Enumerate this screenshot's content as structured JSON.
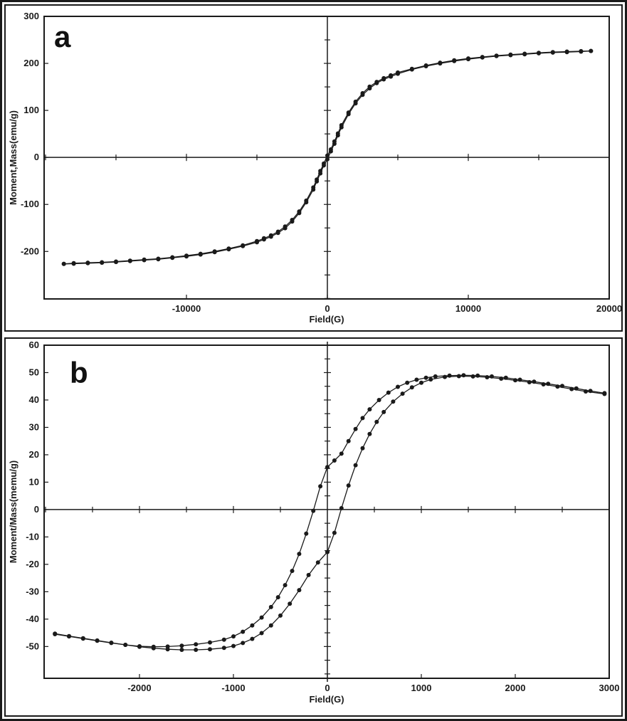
{
  "figure": {
    "background": "#ffffff",
    "ink_color": "#1a1a1a",
    "panels": [
      "a",
      "b"
    ]
  },
  "chart_data": [
    {
      "id": "a",
      "type": "line",
      "corner_label": "a",
      "title": "",
      "xlabel": "Field(G)",
      "ylabel": "Moment,Mass(emu/g)",
      "xlim": [
        -20100,
        20000
      ],
      "ylim": [
        -301,
        300
      ],
      "x_major_ticks": [
        -10000,
        0,
        10000,
        20000
      ],
      "x_tick_labels": [
        "-10000",
        "0",
        "10000",
        "20000"
      ],
      "x_minor_step": 5000,
      "y_major_ticks": [
        300,
        200,
        100,
        0,
        -100,
        -200
      ],
      "y_tick_labels": [
        "300",
        "200",
        "100",
        "0",
        "-100",
        "-200"
      ],
      "y_minor_step": 50,
      "grid": false,
      "legend": "none",
      "marker": "filled-circle",
      "series": [
        {
          "name": "ascending-branch",
          "points": [
            [
              -18700,
              -226.5
            ],
            [
              -18000,
              -226
            ],
            [
              -17000,
              -225
            ],
            [
              -16000,
              -224
            ],
            [
              -15000,
              -222.5
            ],
            [
              -14000,
              -220.5
            ],
            [
              -13000,
              -218.5
            ],
            [
              -12000,
              -216.5
            ],
            [
              -11000,
              -213.5
            ],
            [
              -10000,
              -210.5
            ],
            [
              -9000,
              -206.5
            ],
            [
              -8000,
              -201.5
            ],
            [
              -7000,
              -195.5
            ],
            [
              -6000,
              -188.5
            ],
            [
              -5000,
              -180.5
            ],
            [
              -4500,
              -174.5
            ],
            [
              -4000,
              -168.5
            ],
            [
              -3500,
              -160.5
            ],
            [
              -3000,
              -150.5
            ],
            [
              -2500,
              -136.5
            ],
            [
              -2000,
              -118.5
            ],
            [
              -1500,
              -95.5
            ],
            [
              -1000,
              -68.5
            ],
            [
              -750,
              -51
            ],
            [
              -500,
              -34
            ],
            [
              -250,
              -17
            ],
            [
              0,
              -4
            ],
            [
              250,
              13
            ],
            [
              500,
              29
            ],
            [
              750,
              47
            ],
            [
              1000,
              64
            ],
            [
              1500,
              92
            ],
            [
              2000,
              115
            ],
            [
              2500,
              133
            ],
            [
              3000,
              147
            ],
            [
              3500,
              158
            ],
            [
              4000,
              166
            ],
            [
              4500,
              172
            ],
            [
              5000,
              178
            ],
            [
              6000,
              187
            ],
            [
              7000,
              194
            ],
            [
              8000,
              200
            ],
            [
              9000,
              205
            ],
            [
              10000,
              209
            ],
            [
              11000,
              212.5
            ],
            [
              12000,
              215.5
            ],
            [
              13000,
              217.5
            ],
            [
              14000,
              219.5
            ],
            [
              15000,
              221.5
            ],
            [
              16000,
              223
            ],
            [
              17000,
              224
            ],
            [
              18000,
              225
            ],
            [
              18700,
              226.5
            ]
          ]
        },
        {
          "name": "descending-branch",
          "points": [
            [
              18700,
              226.5
            ],
            [
              18000,
              226
            ],
            [
              17000,
              225
            ],
            [
              16000,
              224
            ],
            [
              15000,
              222.5
            ],
            [
              14000,
              220.5
            ],
            [
              13000,
              218.5
            ],
            [
              12000,
              216.5
            ],
            [
              11000,
              213.5
            ],
            [
              10000,
              210.5
            ],
            [
              9000,
              206.5
            ],
            [
              8000,
              201.5
            ],
            [
              7000,
              195.5
            ],
            [
              6000,
              188.5
            ],
            [
              5000,
              180.5
            ],
            [
              4500,
              174.5
            ],
            [
              4000,
              168.5
            ],
            [
              3500,
              160.5
            ],
            [
              3000,
              150.5
            ],
            [
              2500,
              136.5
            ],
            [
              2000,
              118.5
            ],
            [
              1500,
              95.5
            ],
            [
              1000,
              68.5
            ],
            [
              750,
              51
            ],
            [
              500,
              34
            ],
            [
              250,
              17
            ],
            [
              0,
              4
            ],
            [
              -250,
              -13
            ],
            [
              -500,
              -29
            ],
            [
              -750,
              -47
            ],
            [
              -1000,
              -64
            ],
            [
              -1500,
              -92
            ],
            [
              -2000,
              -115
            ],
            [
              -2500,
              -133
            ],
            [
              -3000,
              -147
            ],
            [
              -3500,
              -158
            ],
            [
              -4000,
              -166
            ],
            [
              -4500,
              -172
            ],
            [
              -5000,
              -178
            ],
            [
              -6000,
              -187
            ],
            [
              -7000,
              -194
            ],
            [
              -8000,
              -200
            ],
            [
              -9000,
              -205
            ],
            [
              -10000,
              -209
            ],
            [
              -11000,
              -212.5
            ],
            [
              -12000,
              -215.5
            ],
            [
              -13000,
              -217.5
            ],
            [
              -14000,
              -219.5
            ],
            [
              -15000,
              -221.5
            ],
            [
              -16000,
              -223
            ],
            [
              -17000,
              -224
            ],
            [
              -18000,
              -225
            ],
            [
              -18700,
              -226.5
            ]
          ]
        }
      ]
    },
    {
      "id": "b",
      "type": "line",
      "corner_label": "b",
      "title": "",
      "xlabel": "Field(G)",
      "ylabel": "Moment/Mass(memu/g)",
      "xlim": [
        -3015,
        3000
      ],
      "ylim": [
        -61.6,
        60
      ],
      "x_major_ticks": [
        -2000,
        -1000,
        0,
        1000,
        2000,
        3000
      ],
      "x_tick_labels": [
        "-2000",
        "-1000",
        "0",
        "1000",
        "2000",
        "3000"
      ],
      "x_minor_step": 500,
      "y_major_ticks": [
        60,
        50,
        40,
        30,
        20,
        10,
        0,
        -10,
        -20,
        -30,
        -40,
        -50
      ],
      "y_tick_labels": [
        "60",
        "50",
        "40",
        "30",
        "20",
        "10",
        "0",
        "-10",
        "-20",
        "-30",
        "-40",
        "-50"
      ],
      "y_minor_step": 5,
      "grid": false,
      "legend": "none",
      "marker": "filled-circle",
      "series": [
        {
          "name": "ascending-branch",
          "points": [
            [
              -2900,
              -45.5
            ],
            [
              -2750,
              -46.3
            ],
            [
              -2600,
              -47.1
            ],
            [
              -2450,
              -47.9
            ],
            [
              -2300,
              -48.7
            ],
            [
              -2150,
              -49.4
            ],
            [
              -2000,
              -50.1
            ],
            [
              -1850,
              -50.6
            ],
            [
              -1700,
              -51
            ],
            [
              -1550,
              -51.2
            ],
            [
              -1400,
              -51.2
            ],
            [
              -1250,
              -51
            ],
            [
              -1100,
              -50.5
            ],
            [
              -1000,
              -49.8
            ],
            [
              -900,
              -48.7
            ],
            [
              -800,
              -47.2
            ],
            [
              -700,
              -45.1
            ],
            [
              -600,
              -42.3
            ],
            [
              -500,
              -38.7
            ],
            [
              -400,
              -34.4
            ],
            [
              -300,
              -29.4
            ],
            [
              -200,
              -23.9
            ],
            [
              -100,
              -19.3
            ],
            [
              0,
              -15.5
            ],
            [
              75,
              -8.5
            ],
            [
              150,
              0.5
            ],
            [
              225,
              8.8
            ],
            [
              300,
              16.2
            ],
            [
              375,
              22.4
            ],
            [
              450,
              27.6
            ],
            [
              525,
              32
            ],
            [
              600,
              35.6
            ],
            [
              700,
              39.4
            ],
            [
              800,
              42.3
            ],
            [
              900,
              44.6
            ],
            [
              1000,
              46.3
            ],
            [
              1100,
              47.5
            ],
            [
              1250,
              48.4
            ],
            [
              1400,
              48.7
            ],
            [
              1550,
              48.6
            ],
            [
              1700,
              48.3
            ],
            [
              1850,
              47.8
            ],
            [
              2000,
              47.2
            ],
            [
              2150,
              46.5
            ],
            [
              2300,
              45.7
            ],
            [
              2450,
              44.9
            ],
            [
              2600,
              44
            ],
            [
              2750,
              43.1
            ],
            [
              2950,
              42.2
            ]
          ]
        },
        {
          "name": "descending-branch",
          "points": [
            [
              2950,
              42.5
            ],
            [
              2800,
              43.3
            ],
            [
              2650,
              44.2
            ],
            [
              2500,
              45.1
            ],
            [
              2350,
              45.9
            ],
            [
              2200,
              46.7
            ],
            [
              2050,
              47.4
            ],
            [
              1900,
              48.1
            ],
            [
              1750,
              48.6
            ],
            [
              1600,
              48.9
            ],
            [
              1450,
              49
            ],
            [
              1300,
              48.9
            ],
            [
              1150,
              48.6
            ],
            [
              1050,
              48.1
            ],
            [
              950,
              47.4
            ],
            [
              850,
              46.3
            ],
            [
              750,
              44.8
            ],
            [
              650,
              42.7
            ],
            [
              550,
              40
            ],
            [
              450,
              36.6
            ],
            [
              375,
              33.4
            ],
            [
              300,
              29.4
            ],
            [
              225,
              25
            ],
            [
              150,
              20.4
            ],
            [
              75,
              17.9
            ],
            [
              0,
              15.5
            ],
            [
              -75,
              8.5
            ],
            [
              -150,
              -0.5
            ],
            [
              -225,
              -8.8
            ],
            [
              -300,
              -16.2
            ],
            [
              -375,
              -22.4
            ],
            [
              -450,
              -27.6
            ],
            [
              -525,
              -32
            ],
            [
              -600,
              -35.6
            ],
            [
              -700,
              -39.4
            ],
            [
              -800,
              -42.3
            ],
            [
              -900,
              -44.6
            ],
            [
              -1000,
              -46.3
            ],
            [
              -1100,
              -47.5
            ],
            [
              -1250,
              -48.5
            ],
            [
              -1400,
              -49.2
            ],
            [
              -1550,
              -49.7
            ],
            [
              -1700,
              -50
            ],
            [
              -1850,
              -50.1
            ],
            [
              -2000,
              -49.9
            ],
            [
              -2150,
              -49.4
            ],
            [
              -2300,
              -48.6
            ],
            [
              -2450,
              -47.8
            ],
            [
              -2600,
              -47
            ],
            [
              -2750,
              -46.2
            ],
            [
              -2900,
              -45.3
            ]
          ]
        }
      ]
    }
  ]
}
